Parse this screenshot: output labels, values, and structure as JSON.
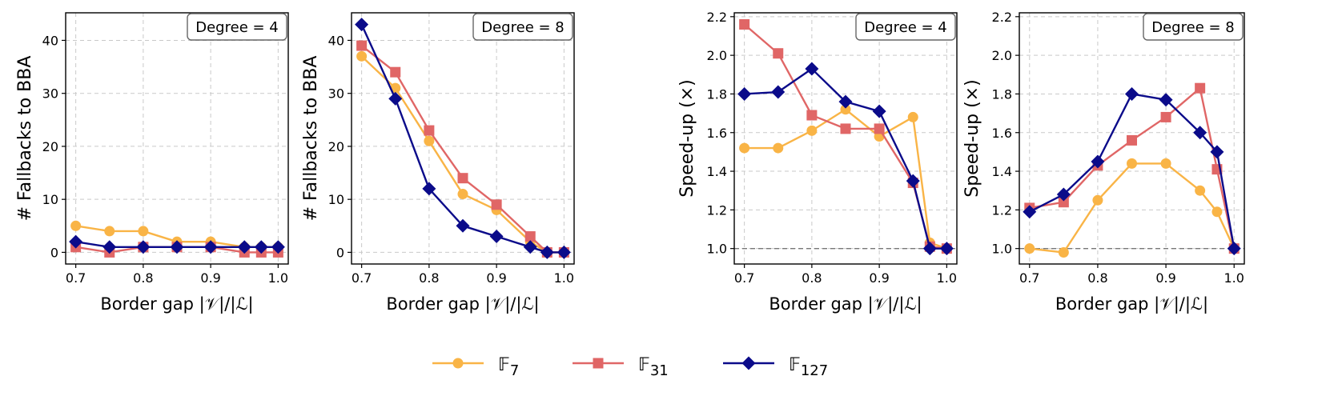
{
  "chart_data": [
    {
      "type": "line",
      "xlabel": "Border gap  |𝒱|/|ℒ|",
      "ylabel": "# Fallbacks to BBA",
      "badge": "Degree = 4",
      "xlim": [
        0.685,
        1.015
      ],
      "ylim": [
        -2.2,
        45.2
      ],
      "xticks": [
        0.7,
        0.8,
        0.9,
        1.0
      ],
      "xtick_labels": [
        "0.7",
        "0.8",
        "0.9",
        "1.0"
      ],
      "yticks": [
        0,
        10,
        20,
        30,
        40
      ],
      "ytick_labels": [
        "0",
        "10",
        "20",
        "30",
        "40"
      ],
      "grid": true,
      "series": [
        {
          "name": "F7",
          "x": [
            0.7,
            0.75,
            0.8,
            0.85,
            0.9,
            0.95,
            0.975,
            1.0
          ],
          "values": [
            5,
            4,
            4,
            2,
            2,
            1,
            1,
            1
          ]
        },
        {
          "name": "F31",
          "x": [
            0.7,
            0.75,
            0.8,
            0.85,
            0.9,
            0.95,
            0.975,
            1.0
          ],
          "values": [
            1,
            0,
            1,
            1,
            1,
            0,
            0,
            0
          ]
        },
        {
          "name": "F127",
          "x": [
            0.7,
            0.75,
            0.8,
            0.85,
            0.9,
            0.95,
            0.975,
            1.0
          ],
          "values": [
            2,
            1,
            1,
            1,
            1,
            1,
            1,
            1
          ]
        }
      ]
    },
    {
      "type": "line",
      "xlabel": "Border gap  |𝒱|/|ℒ|",
      "ylabel": "# Fallbacks to BBA",
      "badge": "Degree = 8",
      "xlim": [
        0.685,
        1.015
      ],
      "ylim": [
        -2.2,
        45.2
      ],
      "xticks": [
        0.7,
        0.8,
        0.9,
        1.0
      ],
      "xtick_labels": [
        "0.7",
        "0.8",
        "0.9",
        "1.0"
      ],
      "yticks": [
        0,
        10,
        20,
        30,
        40
      ],
      "ytick_labels": [
        "0",
        "10",
        "20",
        "30",
        "40"
      ],
      "grid": true,
      "series": [
        {
          "name": "F7",
          "x": [
            0.7,
            0.75,
            0.8,
            0.85,
            0.9,
            0.95,
            0.975,
            1.0
          ],
          "values": [
            37,
            31,
            21,
            11,
            8,
            2,
            0,
            0
          ]
        },
        {
          "name": "F31",
          "x": [
            0.7,
            0.75,
            0.8,
            0.85,
            0.9,
            0.95,
            0.975,
            1.0
          ],
          "values": [
            39,
            34,
            23,
            14,
            9,
            3,
            0,
            0
          ]
        },
        {
          "name": "F127",
          "x": [
            0.7,
            0.75,
            0.8,
            0.85,
            0.9,
            0.95,
            0.975,
            1.0
          ],
          "values": [
            43,
            29,
            12,
            5,
            3,
            1,
            0,
            0
          ]
        }
      ]
    },
    {
      "type": "line",
      "xlabel": "Border gap  |𝒱|/|ℒ|",
      "ylabel": "Speed-up (×)",
      "badge": "Degree = 4",
      "xlim": [
        0.685,
        1.015
      ],
      "ylim": [
        0.92,
        2.22
      ],
      "xticks": [
        0.7,
        0.8,
        0.9,
        1.0
      ],
      "xtick_labels": [
        "0.7",
        "0.8",
        "0.9",
        "1.0"
      ],
      "yticks": [
        1.0,
        1.2,
        1.4,
        1.6,
        1.8,
        2.0,
        2.2
      ],
      "ytick_labels": [
        "1.0",
        "1.2",
        "1.4",
        "1.6",
        "1.8",
        "2.0",
        "2.2"
      ],
      "grid": true,
      "reference_line": 1.0,
      "series": [
        {
          "name": "F7",
          "x": [
            0.7,
            0.75,
            0.8,
            0.85,
            0.9,
            0.95,
            0.975,
            1.0
          ],
          "values": [
            1.52,
            1.52,
            1.61,
            1.72,
            1.58,
            1.68,
            1.03,
            1.0
          ]
        },
        {
          "name": "F31",
          "x": [
            0.7,
            0.75,
            0.8,
            0.85,
            0.9,
            0.95,
            0.975,
            1.0
          ],
          "values": [
            2.16,
            2.01,
            1.69,
            1.62,
            1.62,
            1.34,
            1.01,
            1.0
          ]
        },
        {
          "name": "F127",
          "x": [
            0.7,
            0.75,
            0.8,
            0.85,
            0.9,
            0.95,
            0.975,
            1.0
          ],
          "values": [
            1.8,
            1.81,
            1.93,
            1.76,
            1.71,
            1.35,
            1.0,
            1.0
          ]
        }
      ]
    },
    {
      "type": "line",
      "xlabel": "Border gap  |𝒱|/|ℒ|",
      "ylabel": "Speed-up (×)",
      "badge": "Degree = 8",
      "xlim": [
        0.685,
        1.015
      ],
      "ylim": [
        0.92,
        2.22
      ],
      "xticks": [
        0.7,
        0.8,
        0.9,
        1.0
      ],
      "xtick_labels": [
        "0.7",
        "0.8",
        "0.9",
        "1.0"
      ],
      "yticks": [
        1.0,
        1.2,
        1.4,
        1.6,
        1.8,
        2.0,
        2.2
      ],
      "ytick_labels": [
        "1.0",
        "1.2",
        "1.4",
        "1.6",
        "1.8",
        "2.0",
        "2.2"
      ],
      "grid": true,
      "reference_line": 1.0,
      "series": [
        {
          "name": "F7",
          "x": [
            0.7,
            0.75,
            0.8,
            0.85,
            0.9,
            0.95,
            0.975,
            1.0
          ],
          "values": [
            1.0,
            0.98,
            1.25,
            1.44,
            1.44,
            1.3,
            1.19,
            1.0
          ]
        },
        {
          "name": "F31",
          "x": [
            0.7,
            0.75,
            0.8,
            0.85,
            0.9,
            0.95,
            0.975,
            1.0
          ],
          "values": [
            1.21,
            1.24,
            1.43,
            1.56,
            1.68,
            1.83,
            1.41,
            1.0
          ]
        },
        {
          "name": "F127",
          "x": [
            0.7,
            0.75,
            0.8,
            0.85,
            0.9,
            0.95,
            0.975,
            1.0
          ],
          "values": [
            1.19,
            1.28,
            1.45,
            1.8,
            1.77,
            1.6,
            1.5,
            1.0
          ]
        }
      ]
    }
  ],
  "legend": {
    "placement": "bottom-center",
    "entries": [
      {
        "name": "F7",
        "label_letter": "𝔽",
        "label_sub": "7",
        "color": "#f9b446",
        "marker": "circle"
      },
      {
        "name": "F31",
        "label_letter": "𝔽",
        "label_sub": "31",
        "color": "#e06666",
        "marker": "square"
      },
      {
        "name": "F127",
        "label_letter": "𝔽",
        "label_sub": "127",
        "color": "#0b0b8a",
        "marker": "diamond"
      }
    ]
  }
}
